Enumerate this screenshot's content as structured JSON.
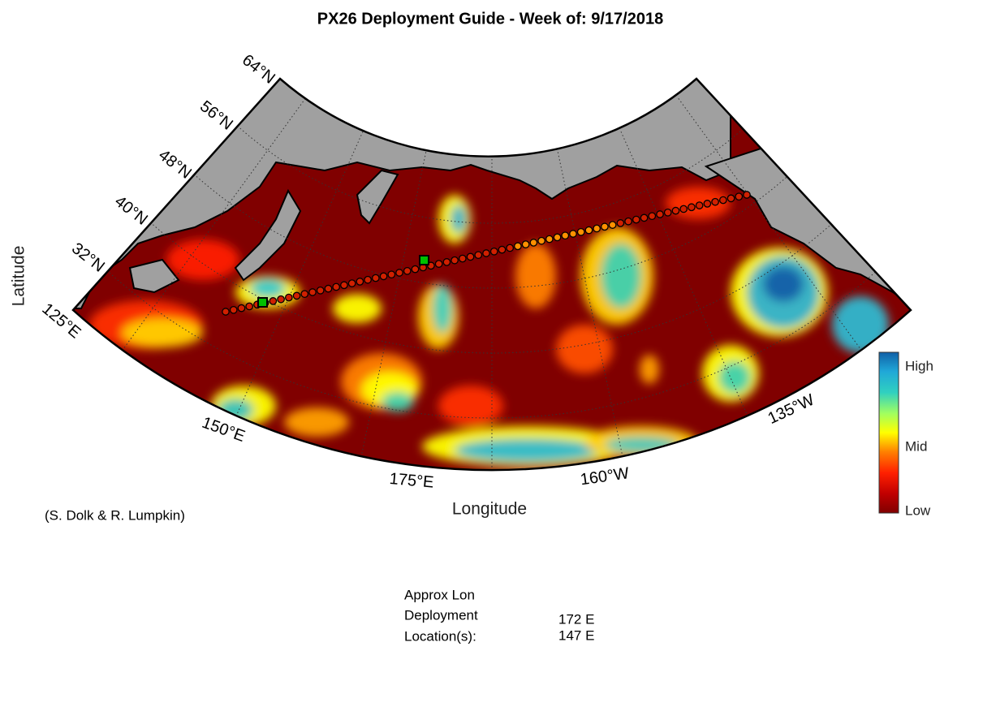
{
  "title": "PX26 Deployment Guide - Week of: 9/17/2018",
  "axes": {
    "x_label": "Longitude",
    "y_label": "Latitude"
  },
  "map": {
    "lat_labels": [
      "64°N",
      "56°N",
      "48°N",
      "40°N",
      "32°N"
    ],
    "lon_labels": [
      "125°E",
      "150°E",
      "175°E",
      "160°W",
      "135°W"
    ]
  },
  "colorbar": {
    "labels": [
      "High",
      "Mid",
      "Low"
    ]
  },
  "credit": "(S. Dolk & R. Lumpkin)",
  "deployment": {
    "heading": [
      "Approx Lon",
      "Deployment",
      "Location(s):"
    ],
    "locations": [
      "172 E",
      "147 E"
    ]
  }
}
